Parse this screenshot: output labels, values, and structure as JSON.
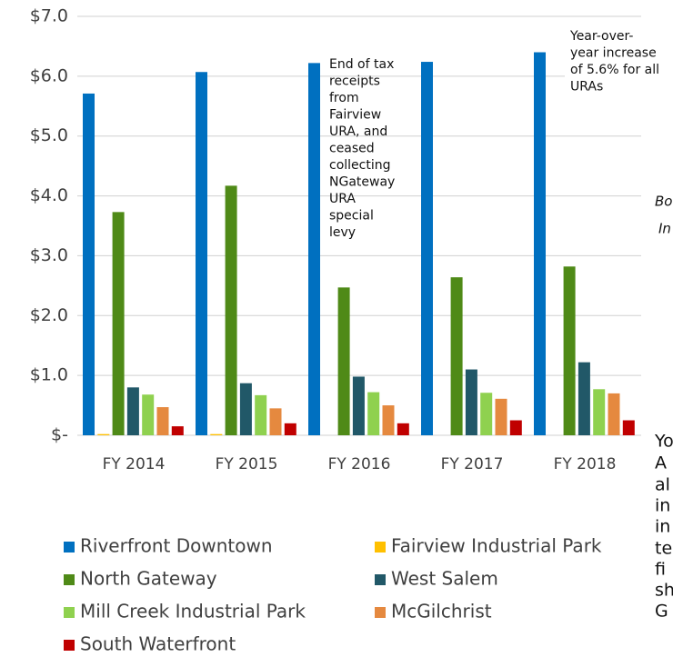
{
  "chart_data": {
    "type": "bar",
    "categories": [
      "FY 2014",
      "FY 2015",
      "FY 2016",
      "FY 2017",
      "FY 2018"
    ],
    "series": [
      {
        "name": "Riverfront Downtown",
        "color": "#0070c0",
        "values": [
          5.71,
          6.07,
          6.22,
          6.24,
          6.4
        ]
      },
      {
        "name": "Fairview Industrial Park",
        "color": "#ffc000",
        "values": [
          0.02,
          0.02,
          0,
          0,
          0
        ]
      },
      {
        "name": "North Gateway",
        "color": "#4f8a17",
        "values": [
          3.73,
          4.17,
          2.47,
          2.64,
          2.82
        ]
      },
      {
        "name": "West Salem",
        "color": "#215868",
        "values": [
          0.8,
          0.87,
          0.98,
          1.1,
          1.22
        ]
      },
      {
        "name": "Mill Creek Industrial Park",
        "color": "#8fd14f",
        "values": [
          0.68,
          0.67,
          0.72,
          0.71,
          0.77
        ]
      },
      {
        "name": "McGilchrist",
        "color": "#e5893f",
        "values": [
          0.47,
          0.45,
          0.5,
          0.61,
          0.7
        ]
      },
      {
        "name": "South Waterfront",
        "color": "#c00000",
        "values": [
          0.15,
          0.2,
          0.2,
          0.25,
          0.25
        ]
      }
    ],
    "ylim": [
      0,
      7
    ],
    "yticks": [
      {
        "value": 0,
        "label": "$-"
      },
      {
        "value": 1,
        "label": "$1.0"
      },
      {
        "value": 2,
        "label": "$2.0"
      },
      {
        "value": 3,
        "label": "$3.0"
      },
      {
        "value": 4,
        "label": "$4.0"
      },
      {
        "value": 5,
        "label": "$5.0"
      },
      {
        "value": 6,
        "label": "$6.0"
      },
      {
        "value": 7,
        "label": "$7.0"
      }
    ],
    "grid": true,
    "annotations": [
      {
        "lines": [
          "End of tax",
          "receipts",
          "from",
          "Fairview",
          "URA, and",
          "ceased",
          "collecting",
          "NGateway",
          "URA",
          "special",
          "levy"
        ]
      },
      {
        "lines": [
          "Year-over-",
          "year increase",
          "of 5.6% for all",
          "URAs"
        ]
      }
    ],
    "fragments": [
      "Bo",
      "In",
      "Yo",
      "A",
      "al",
      "in",
      "in",
      "te",
      "fi",
      "sh",
      "G"
    ]
  }
}
